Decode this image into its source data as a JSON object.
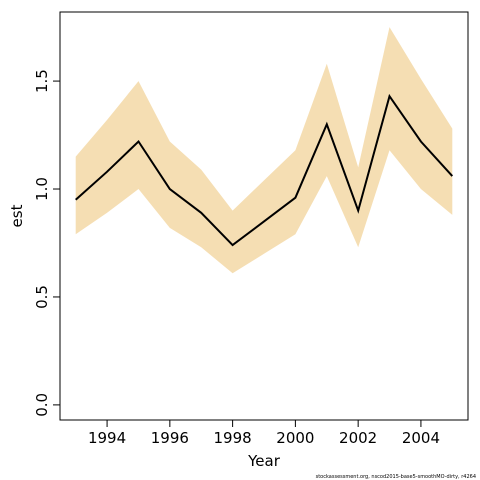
{
  "chart_data": {
    "type": "line",
    "title": "",
    "xlabel": "Year",
    "ylabel": "est",
    "x": [
      1993,
      1994,
      1995,
      1996,
      1997,
      1998,
      1999,
      2000,
      2001,
      2002,
      2003,
      2004,
      2005
    ],
    "series": [
      {
        "values": [
          0.95,
          1.08,
          1.22,
          1.0,
          0.89,
          0.74,
          0.85,
          0.96,
          1.3,
          0.9,
          1.43,
          1.22,
          1.06
        ],
        "lower": [
          0.79,
          0.89,
          1.0,
          0.82,
          0.73,
          0.61,
          0.7,
          0.79,
          1.06,
          0.73,
          1.18,
          1.0,
          0.88
        ],
        "upper": [
          1.15,
          1.32,
          1.5,
          1.22,
          1.09,
          0.9,
          1.04,
          1.18,
          1.58,
          1.1,
          1.75,
          1.51,
          1.28
        ],
        "color": "#000000",
        "band_color": "#f5deb3"
      }
    ],
    "xticks": [
      1994,
      1996,
      1998,
      2000,
      2002,
      2004
    ],
    "xtick_labels": [
      "1994",
      "1996",
      "1998",
      "2000",
      "2002",
      "2004"
    ],
    "yticks": [
      0.0,
      0.5,
      1.0,
      1.5
    ],
    "ytick_labels": [
      "0.0",
      "0.5",
      "1.0",
      "1.5"
    ],
    "xlim": [
      1992.5,
      2005.5
    ],
    "ylim": [
      -0.07,
      1.82
    ],
    "grid": false,
    "legend": "none"
  },
  "footnote": "stockassessment.org, nscod2015-base5-smoothMO-dirty, r4264"
}
